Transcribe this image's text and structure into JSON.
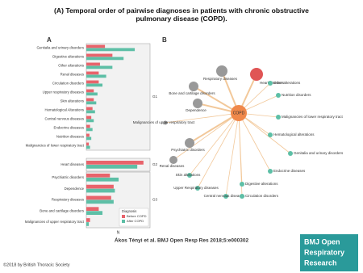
{
  "title": "(A) Temporal order of pairwise diagnoses in patients with chronic obstructive pulmonary disease (COPD).",
  "panel_a_label": "A",
  "chart_data": [
    {
      "type": "bar",
      "panel_label": "G1",
      "categories": [
        "Genitalia and urinary disorders",
        "Digestive alterations",
        "Other alterations",
        "Renal diseases",
        "Circulation disorders",
        "Upper respiratory diseases",
        "Skin alterations",
        "Hematological Alterations",
        "Central nervous diseases",
        "Endocrine diseases",
        "Nutrition diseases",
        "Malignancies of lower respiratory tract"
      ],
      "series": [
        {
          "name": "Before COPD",
          "color": "#e8636b",
          "values": [
            30,
            42,
            22,
            20,
            20,
            12,
            12,
            10,
            8,
            6,
            5,
            4
          ]
        },
        {
          "name": "After COPD",
          "color": "#5dbfa6",
          "values": [
            78,
            60,
            42,
            32,
            26,
            18,
            16,
            14,
            12,
            10,
            8,
            6
          ]
        }
      ],
      "xlim": [
        0,
        100
      ]
    },
    {
      "type": "bar",
      "panel_label": "G2",
      "categories": [
        "Heart diseases"
      ],
      "series": [
        {
          "name": "Before COPD",
          "color": "#e8636b",
          "values": [
            92
          ]
        },
        {
          "name": "After COPD",
          "color": "#5dbfa6",
          "values": [
            82
          ]
        }
      ],
      "xlim": [
        0,
        100
      ]
    },
    {
      "type": "bar",
      "panel_label": "G3",
      "categories": [
        "Psychiatric disorders",
        "Dependence",
        "Respiratory diseases",
        "Bone and cartilage disorders",
        "Malignancies of upper respiratory tract"
      ],
      "series": [
        {
          "name": "Before COPD",
          "color": "#e8636b",
          "values": [
            38,
            44,
            40,
            20,
            6
          ]
        },
        {
          "name": "After COPD",
          "color": "#5dbfa6",
          "values": [
            52,
            46,
            44,
            26,
            4
          ]
        }
      ],
      "xlim": [
        0,
        100
      ],
      "xlabel": "N",
      "legend_title": "Diagnosis",
      "legend": "bottom-right"
    }
  ],
  "network": {
    "panel_label": "B",
    "center": "COPD",
    "nodes": [
      "Heart diseases",
      "Respiratory diseases",
      "Bone and cartilage disorders",
      "Other alterations",
      "Nutrition disorders",
      "Dependence",
      "Malignancies of lower respiratory tract",
      "Malignancies of upper respiratory tract",
      "Psychiatric disorders",
      "Hematological alterations",
      "Genitalia and urinary disorders",
      "Renal diseases",
      "Endocrine diseases",
      "Skin alterations",
      "Upper Respiratory diseases",
      "Digestive alterations",
      "Central nervous diseases",
      "Circulation disorders"
    ]
  },
  "citation": "Ákos Tényi et al. BMJ Open Resp Res 2018;5:e000302",
  "copyright": "©2018 by British Thoracic Society",
  "logo": [
    "BMJ Open",
    "Respiratory",
    "Research"
  ]
}
